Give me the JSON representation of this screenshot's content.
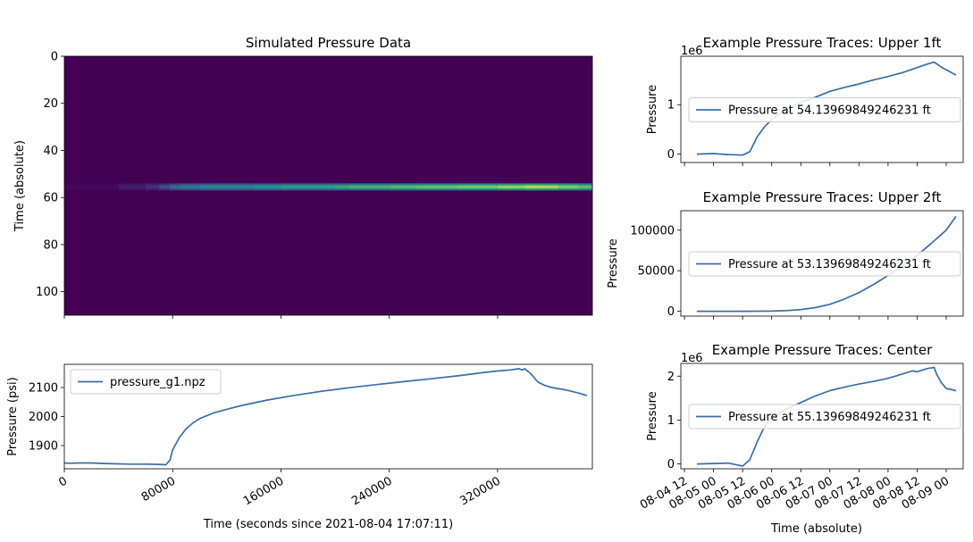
{
  "chart_data": [
    {
      "id": "heatmap",
      "type": "heatmap",
      "title": "Simulated Pressure Data",
      "ylabel": "Time (absolute)",
      "ylim": [
        110,
        0
      ],
      "xlim": [
        0,
        390000
      ],
      "yticks": [
        "0",
        "20",
        "40",
        "60",
        "80",
        "100"
      ],
      "colormap": "viridis",
      "band": {
        "depth_range": [
          54,
          57
        ],
        "x": [
          0,
          40000,
          60000,
          70000,
          78000,
          85000,
          100000,
          140000,
          160000,
          200000,
          210000,
          240000,
          260000,
          290000,
          320000,
          340000,
          350000,
          365000,
          380000,
          390000
        ],
        "intensity": [
          0.0,
          0.05,
          0.12,
          0.18,
          0.3,
          0.38,
          0.42,
          0.48,
          0.52,
          0.56,
          0.62,
          0.66,
          0.7,
          0.74,
          0.8,
          0.86,
          0.9,
          0.84,
          0.74,
          0.7
        ]
      }
    },
    {
      "id": "pressure-line",
      "type": "line",
      "xlabel": "Time (seconds since 2021-08-04 17:07:11)",
      "ylabel": "Pressure (psi)",
      "xlim": [
        0,
        390000
      ],
      "ylim": [
        1820,
        2180
      ],
      "xticks": [
        "0",
        "80000",
        "160000",
        "240000",
        "320000"
      ],
      "yticks": [
        "1900",
        "2000",
        "2100"
      ],
      "legend": "upper left",
      "series": [
        {
          "name": "pressure_g1.npz",
          "x": [
            0,
            5000,
            10000,
            20000,
            30000,
            40000,
            50000,
            60000,
            70000,
            75000,
            78000,
            80000,
            85000,
            90000,
            95000,
            100000,
            110000,
            120000,
            130000,
            150000,
            170000,
            190000,
            210000,
            230000,
            250000,
            270000,
            290000,
            310000,
            320000,
            330000,
            336000,
            338000,
            340000,
            342000,
            344000,
            346000,
            348000,
            350000,
            355000,
            360000,
            370000,
            380000,
            386000
          ],
          "y": [
            1840,
            1839,
            1840,
            1840,
            1838,
            1837,
            1836,
            1836,
            1835,
            1834,
            1850,
            1885,
            1928,
            1958,
            1978,
            1993,
            2012,
            2025,
            2037,
            2057,
            2073,
            2087,
            2099,
            2110,
            2120,
            2130,
            2140,
            2152,
            2157,
            2161,
            2165,
            2160,
            2165,
            2157,
            2150,
            2140,
            2128,
            2118,
            2107,
            2100,
            2092,
            2081,
            2072
          ]
        }
      ]
    },
    {
      "id": "upper-1ft",
      "type": "line",
      "title": "Example Pressure Traces: Upper 1ft",
      "ylabel": "Pressure",
      "offset_label": "1e6",
      "ylim": [
        -0.17,
        1.98
      ],
      "yticks": [
        "0",
        "1"
      ],
      "xlim": [
        "2021-08-04 10:30",
        "2021-08-09 07:00"
      ],
      "legend": "center right",
      "series": [
        {
          "name": "Pressure at 54.13969849246231 ft",
          "x": [
            "2021-08-04 17:07",
            "2021-08-05 00:00",
            "2021-08-05 06:00",
            "2021-08-05 12:00",
            "2021-08-05 15:00",
            "2021-08-05 18:00",
            "2021-08-05 21:00",
            "2021-08-06 00:00",
            "2021-08-06 06:00",
            "2021-08-06 12:00",
            "2021-08-06 18:00",
            "2021-08-07 00:00",
            "2021-08-07 06:00",
            "2021-08-07 12:00",
            "2021-08-07 18:00",
            "2021-08-08 00:00",
            "2021-08-08 06:00",
            "2021-08-08 12:00",
            "2021-08-08 16:00",
            "2021-08-08 19:00",
            "2021-08-08 22:00",
            "2021-08-09 04:00"
          ],
          "y": [
            0.0,
            0.01,
            -0.01,
            -0.02,
            0.05,
            0.35,
            0.55,
            0.7,
            0.9,
            1.05,
            1.15,
            1.27,
            1.35,
            1.42,
            1.5,
            1.57,
            1.65,
            1.75,
            1.82,
            1.86,
            1.76,
            1.6
          ]
        }
      ]
    },
    {
      "id": "upper-2ft",
      "type": "line",
      "title": "Example Pressure Traces: Upper 2ft",
      "ylabel": "Pressure",
      "ylim": [
        -6000,
        124000
      ],
      "yticks": [
        "0",
        "50000",
        "100000"
      ],
      "xlim": [
        "2021-08-04 10:30",
        "2021-08-09 07:00"
      ],
      "legend": "center right",
      "series": [
        {
          "name": "Pressure at 53.13969849246231 ft",
          "x": [
            "2021-08-04 17:07",
            "2021-08-05 00:00",
            "2021-08-05 12:00",
            "2021-08-06 00:00",
            "2021-08-06 06:00",
            "2021-08-06 12:00",
            "2021-08-06 18:00",
            "2021-08-07 00:00",
            "2021-08-07 06:00",
            "2021-08-07 12:00",
            "2021-08-07 18:00",
            "2021-08-08 00:00",
            "2021-08-08 06:00",
            "2021-08-08 12:00",
            "2021-08-08 18:00",
            "2021-08-09 00:00",
            "2021-08-09 04:00"
          ],
          "y": [
            0,
            0,
            0,
            200,
            700,
            2000,
            4500,
            8500,
            15000,
            23000,
            33000,
            44000,
            56000,
            69000,
            84000,
            100000,
            117000
          ]
        }
      ]
    },
    {
      "id": "center",
      "type": "line",
      "title": "Example Pressure Traces: Center",
      "ylabel": "Pressure",
      "xlabel": "Time (absolute)",
      "offset_label": "1e6",
      "ylim": [
        -0.11,
        2.29
      ],
      "yticks": [
        "0",
        "1",
        "2"
      ],
      "xlim": [
        "2021-08-04 10:30",
        "2021-08-09 07:00"
      ],
      "xticks": [
        "08-04 12",
        "08-05 00",
        "08-05 12",
        "08-06 00",
        "08-06 12",
        "08-07 00",
        "08-07 12",
        "08-08 00",
        "08-08 12",
        "08-09 00"
      ],
      "legend": "center right",
      "series": [
        {
          "name": "Pressure at 55.13969849246231 ft",
          "x": [
            "2021-08-04 17:07",
            "2021-08-05 00:00",
            "2021-08-05 06:00",
            "2021-08-05 12:00",
            "2021-08-05 15:00",
            "2021-08-05 18:00",
            "2021-08-05 21:00",
            "2021-08-06 00:00",
            "2021-08-06 06:00",
            "2021-08-06 12:00",
            "2021-08-06 18:00",
            "2021-08-07 00:00",
            "2021-08-07 06:00",
            "2021-08-07 12:00",
            "2021-08-07 18:00",
            "2021-08-08 00:00",
            "2021-08-08 06:00",
            "2021-08-08 10:00",
            "2021-08-08 12:00",
            "2021-08-08 16:00",
            "2021-08-08 19:00",
            "2021-08-08 20:00",
            "2021-08-08 22:00",
            "2021-08-09 00:00",
            "2021-08-09 04:00"
          ],
          "y": [
            0.0,
            0.01,
            0.02,
            -0.05,
            0.1,
            0.5,
            0.85,
            1.05,
            1.25,
            1.4,
            1.55,
            1.67,
            1.75,
            1.82,
            1.88,
            1.95,
            2.05,
            2.12,
            2.1,
            2.17,
            2.2,
            2.05,
            1.85,
            1.72,
            1.67
          ]
        }
      ]
    }
  ]
}
